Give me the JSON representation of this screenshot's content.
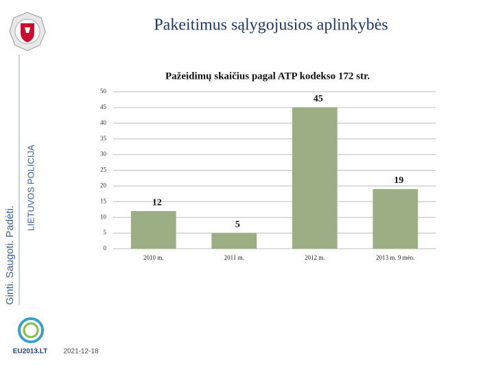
{
  "slide": {
    "title": "Pakeitimus sąlygojusios aplinkybės",
    "motto": "Ginti. Saugoti. Padėti.",
    "organization": "LIETUVOS POLICIJA",
    "logo_text": "EU2013.LT",
    "date": "2021-12-18"
  },
  "chart_data": {
    "type": "bar",
    "title": "Pažeidimų skaičius pagal ATP kodekso 172 str.",
    "categories": [
      "2010 m.",
      "2011 m.",
      "2012 m.",
      "2013 m. 9 mėn."
    ],
    "values": [
      12,
      5,
      45,
      19
    ],
    "color": "#9caf84",
    "ylim": [
      0,
      50
    ],
    "yticks": [
      0,
      5,
      10,
      15,
      20,
      25,
      30,
      35,
      40,
      45,
      50
    ],
    "grid": true
  }
}
